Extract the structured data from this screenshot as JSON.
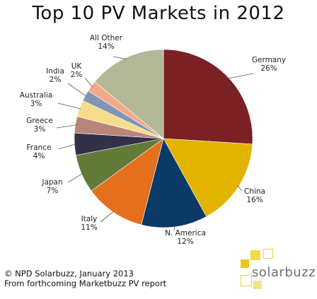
{
  "chart_data": {
    "type": "pie",
    "title": "Top 10 PV Markets in 2012",
    "slices": [
      {
        "label": "Germany",
        "value": 26,
        "pct_label": "26%",
        "color": "#7b2023"
      },
      {
        "label": "China",
        "value": 16,
        "pct_label": "16%",
        "color": "#e2b400"
      },
      {
        "label": "N. America",
        "value": 12,
        "pct_label": "12%",
        "color": "#0b3a67"
      },
      {
        "label": "Italy",
        "value": 11,
        "pct_label": "11%",
        "color": "#e46f1d"
      },
      {
        "label": "Japan",
        "value": 7,
        "pct_label": "7%",
        "color": "#627a38"
      },
      {
        "label": "France",
        "value": 4,
        "pct_label": "4%",
        "color": "#33304a"
      },
      {
        "label": "Greece",
        "value": 3,
        "pct_label": "3%",
        "color": "#b9857b"
      },
      {
        "label": "Australia",
        "value": 3,
        "pct_label": "3%",
        "color": "#f6dd8b"
      },
      {
        "label": "India",
        "value": 2,
        "pct_label": "2%",
        "color": "#8096b4"
      },
      {
        "label": "UK",
        "value": 2,
        "pct_label": "2%",
        "color": "#f1a98a"
      },
      {
        "label": "All Other",
        "value": 14,
        "pct_label": "14%",
        "color": "#b3b996"
      }
    ]
  },
  "footer": {
    "line1": "© NPD Solarbuzz, January 2013",
    "line2": "From forthcoming Marketbuzz PV report"
  },
  "logo": {
    "text": "solarbuzz",
    "trademark": "™",
    "accent_color": "#f0c419"
  }
}
